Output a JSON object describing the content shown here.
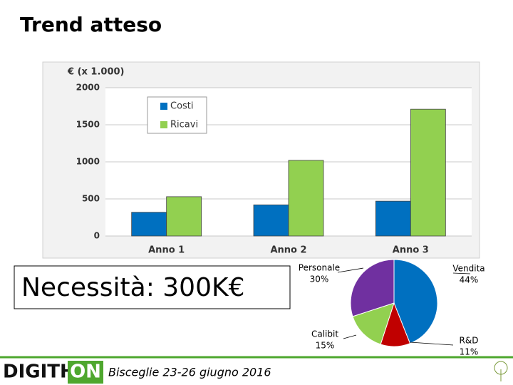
{
  "slide": {
    "title": "Trend atteso",
    "callout": "Necessità: 300K€",
    "logo": {
      "left": "DIGITH",
      "right": "ON"
    },
    "footer": "Bisceglie 23-26 giugno 2016"
  },
  "chart_data": [
    {
      "type": "bar",
      "y_label": "€ (x 1.000)",
      "categories": [
        "Anno 1",
        "Anno 2",
        "Anno 3"
      ],
      "series": [
        {
          "name": "Costi",
          "color": "#0070c0",
          "values": [
            320,
            420,
            470
          ]
        },
        {
          "name": "Ricavi",
          "color": "#92d050",
          "values": [
            530,
            1020,
            1710
          ]
        }
      ],
      "ylim": [
        0,
        2000
      ],
      "yticks": [
        0,
        500,
        1000,
        1500,
        2000
      ],
      "grid": true,
      "legend": "top-left"
    },
    {
      "type": "pie",
      "categories": [
        "Vendita",
        "R&D",
        "Calibit",
        "Personale"
      ],
      "values": [
        44,
        11,
        15,
        30
      ],
      "value_labels": [
        "44%",
        "11%",
        "15%",
        "30%"
      ],
      "colors": [
        "#0070c0",
        "#c00000",
        "#92d050",
        "#7030a0"
      ]
    }
  ]
}
